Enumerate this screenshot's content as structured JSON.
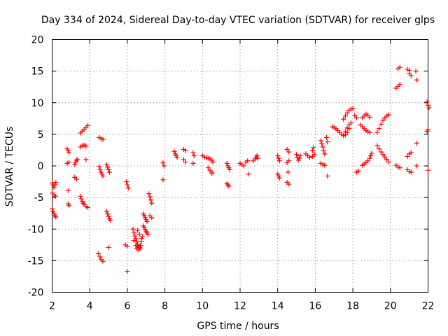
{
  "chart_data": {
    "type": "scatter",
    "title": "Day 334 of 2024, Sidereal Day-to-day VTEC variation (SDTVAR) for receiver glps",
    "xlabel": "GPS time / hours",
    "ylabel": "SDTVAR / TECUs",
    "xlim": [
      2,
      22
    ],
    "ylim": [
      -20,
      20
    ],
    "xticks": [
      2,
      4,
      6,
      8,
      10,
      12,
      14,
      16,
      18,
      20,
      22
    ],
    "yticks": [
      -20,
      -15,
      -10,
      -5,
      0,
      5,
      10,
      15,
      20
    ],
    "grid": true,
    "marker": "+",
    "color": "#ff0000",
    "segments": [
      [
        [
          2.0,
          -2.7
        ],
        [
          2.05,
          -3.0
        ],
        [
          2.1,
          -3.4
        ],
        [
          2.15,
          -3.0
        ],
        [
          2.2,
          -2.6
        ]
      ],
      [
        [
          2.0,
          -4.3
        ],
        [
          2.1,
          -4.6
        ],
        [
          2.18,
          -4.8
        ]
      ],
      [
        [
          2.0,
          -6.8
        ],
        [
          2.05,
          -7.2
        ],
        [
          2.1,
          -7.6
        ],
        [
          2.15,
          -7.9
        ],
        [
          2.2,
          -8.1
        ]
      ],
      [
        [
          2.8,
          2.7
        ],
        [
          2.85,
          2.4
        ],
        [
          2.9,
          2.1
        ]
      ],
      [
        [
          2.8,
          0.4
        ],
        [
          2.9,
          0.6
        ]
      ],
      [
        [
          2.85,
          -3.9
        ]
      ],
      [
        [
          2.85,
          -6.0
        ],
        [
          2.9,
          -6.3
        ]
      ],
      [
        [
          3.2,
          -1.8
        ],
        [
          3.3,
          -2.1
        ]
      ],
      [
        [
          3.2,
          0.2
        ],
        [
          3.25,
          0.6
        ],
        [
          3.3,
          0.9
        ],
        [
          3.35,
          1.0
        ]
      ],
      [
        [
          3.5,
          5.2
        ],
        [
          3.6,
          5.5
        ],
        [
          3.7,
          5.8
        ],
        [
          3.8,
          6.1
        ],
        [
          3.9,
          6.4
        ]
      ],
      [
        [
          3.5,
          3.0
        ],
        [
          3.6,
          3.2
        ],
        [
          3.7,
          3.3
        ],
        [
          3.8,
          3.1
        ]
      ],
      [
        [
          3.5,
          -4.8
        ],
        [
          3.55,
          -5.2
        ],
        [
          3.6,
          -5.6
        ],
        [
          3.65,
          -5.9
        ],
        [
          3.7,
          -6.1
        ],
        [
          3.8,
          -6.4
        ],
        [
          3.9,
          -6.6
        ]
      ],
      [
        [
          3.8,
          1.0
        ]
      ],
      [
        [
          4.5,
          4.5
        ],
        [
          4.6,
          4.3
        ],
        [
          4.7,
          4.2
        ]
      ],
      [
        [
          4.5,
          -0.1
        ],
        [
          4.55,
          -0.6
        ],
        [
          4.6,
          -1.0
        ],
        [
          4.65,
          -1.3
        ],
        [
          4.7,
          -1.6
        ]
      ],
      [
        [
          4.45,
          -13.9
        ],
        [
          4.55,
          -14.4
        ],
        [
          4.6,
          -14.8
        ],
        [
          4.7,
          -15.1
        ]
      ],
      [
        [
          4.9,
          0.2
        ],
        [
          4.95,
          -0.2
        ],
        [
          5.0,
          -0.6
        ],
        [
          5.05,
          -1.0
        ]
      ],
      [
        [
          4.9,
          -7.2
        ],
        [
          4.95,
          -7.6
        ],
        [
          5.0,
          -8.0
        ],
        [
          5.05,
          -8.4
        ],
        [
          5.1,
          -8.6
        ]
      ],
      [
        [
          5.0,
          -12.9
        ]
      ],
      [
        [
          5.95,
          -2.5
        ],
        [
          6.0,
          -3.0
        ],
        [
          6.05,
          -3.5
        ]
      ],
      [
        [
          5.9,
          -12.5
        ],
        [
          6.0,
          -12.7
        ]
      ],
      [
        [
          6.0,
          -16.7
        ]
      ],
      [
        [
          6.3,
          -10.0
        ],
        [
          6.35,
          -10.6
        ],
        [
          6.4,
          -11.1
        ],
        [
          6.45,
          -11.5
        ],
        [
          6.5,
          -12.0
        ],
        [
          6.55,
          -12.4
        ],
        [
          6.6,
          -12.8
        ],
        [
          6.65,
          -12.9
        ],
        [
          6.7,
          -12.6
        ],
        [
          6.75,
          -12.0
        ],
        [
          6.8,
          -11.2
        ]
      ],
      [
        [
          6.35,
          -11.8
        ],
        [
          6.45,
          -12.6
        ],
        [
          6.5,
          -13.1
        ],
        [
          6.6,
          -13.3
        ],
        [
          6.7,
          -13.0
        ]
      ],
      [
        [
          6.55,
          -10.2
        ],
        [
          6.65,
          -10.8
        ],
        [
          6.75,
          -11.5
        ]
      ],
      [
        [
          6.85,
          -7.6
        ],
        [
          6.9,
          -7.9
        ],
        [
          6.95,
          -8.2
        ],
        [
          7.0,
          -8.5
        ],
        [
          7.05,
          -8.8
        ]
      ],
      [
        [
          6.85,
          -9.5
        ],
        [
          6.9,
          -9.8
        ],
        [
          6.95,
          -10.1
        ],
        [
          7.0,
          -10.4
        ],
        [
          7.05,
          -10.6
        ],
        [
          7.1,
          -10.9
        ]
      ],
      [
        [
          7.15,
          -4.4
        ],
        [
          7.2,
          -4.9
        ],
        [
          7.25,
          -5.4
        ],
        [
          7.3,
          -5.9
        ]
      ],
      [
        [
          7.2,
          -7.9
        ],
        [
          7.3,
          -8.2
        ]
      ],
      [
        [
          7.9,
          0.5
        ],
        [
          7.95,
          0.0
        ]
      ],
      [
        [
          7.9,
          -2.2
        ]
      ],
      [
        [
          8.5,
          2.3
        ],
        [
          8.55,
          1.9
        ],
        [
          8.6,
          1.6
        ],
        [
          8.65,
          1.3
        ]
      ],
      [
        [
          9.0,
          2.6
        ],
        [
          9.1,
          2.4
        ]
      ],
      [
        [
          9.0,
          1.0
        ],
        [
          9.1,
          0.6
        ]
      ],
      [
        [
          9.5,
          2.1
        ],
        [
          9.55,
          1.6
        ]
      ],
      [
        [
          9.5,
          0.4
        ]
      ],
      [
        [
          10.0,
          1.6
        ],
        [
          10.1,
          1.4
        ],
        [
          10.2,
          1.3
        ],
        [
          10.3,
          1.2
        ],
        [
          10.4,
          1.1
        ],
        [
          10.5,
          0.9
        ],
        [
          10.55,
          0.6
        ]
      ],
      [
        [
          10.3,
          -0.3
        ],
        [
          10.4,
          -0.7
        ],
        [
          10.5,
          -1.0
        ]
      ],
      [
        [
          10.5,
          -1.2
        ]
      ],
      [
        [
          11.3,
          0.4
        ],
        [
          11.35,
          0.0
        ],
        [
          11.4,
          -0.3
        ],
        [
          11.45,
          -0.6
        ]
      ],
      [
        [
          11.3,
          -2.8
        ],
        [
          11.35,
          -3.0
        ],
        [
          11.4,
          -3.2
        ]
      ],
      [
        [
          12.0,
          0.4
        ],
        [
          12.1,
          0.2
        ],
        [
          12.2,
          0.0
        ]
      ],
      [
        [
          12.3,
          0.6
        ],
        [
          12.4,
          0.8
        ]
      ],
      [
        [
          12.45,
          -1.3
        ]
      ],
      [
        [
          12.7,
          0.8
        ],
        [
          12.8,
          1.1
        ],
        [
          12.85,
          1.4
        ],
        [
          12.9,
          1.6
        ],
        [
          12.95,
          1.2
        ]
      ],
      [
        [
          14.0,
          1.6
        ],
        [
          14.05,
          1.2
        ],
        [
          14.1,
          0.8
        ]
      ],
      [
        [
          14.0,
          -1.3
        ],
        [
          14.05,
          -1.6
        ],
        [
          14.1,
          -1.9
        ]
      ],
      [
        [
          14.5,
          2.6
        ],
        [
          14.6,
          2.2
        ]
      ],
      [
        [
          14.5,
          0.5
        ],
        [
          14.6,
          0.8
        ]
      ],
      [
        [
          14.55,
          -1.0
        ]
      ],
      [
        [
          14.5,
          -2.6
        ],
        [
          14.6,
          -2.9
        ]
      ],
      [
        [
          15.0,
          1.8
        ],
        [
          15.05,
          1.3
        ],
        [
          15.1,
          0.9
        ],
        [
          15.15,
          1.2
        ],
        [
          15.2,
          1.6
        ]
      ],
      [
        [
          15.5,
          1.9
        ],
        [
          15.6,
          1.6
        ],
        [
          15.7,
          1.3
        ]
      ],
      [
        [
          15.85,
          2.4
        ],
        [
          15.9,
          2.9
        ]
      ],
      [
        [
          15.85,
          1.5
        ],
        [
          15.95,
          1.8
        ]
      ],
      [
        [
          16.3,
          4.0
        ],
        [
          16.35,
          3.5
        ],
        [
          16.4,
          3.0
        ],
        [
          16.45,
          2.4
        ],
        [
          16.5,
          1.9
        ]
      ],
      [
        [
          16.3,
          0.4
        ],
        [
          16.4,
          0.2
        ],
        [
          16.5,
          0.1
        ]
      ],
      [
        [
          16.6,
          4.5
        ],
        [
          16.65,
          3.8
        ]
      ],
      [
        [
          16.65,
          -1.6
        ]
      ],
      [
        [
          16.9,
          6.2
        ],
        [
          17.0,
          6.1
        ],
        [
          17.1,
          5.9
        ],
        [
          17.2,
          5.6
        ],
        [
          17.3,
          5.3
        ],
        [
          17.4,
          5.0
        ],
        [
          17.5,
          4.8
        ],
        [
          17.6,
          4.9
        ],
        [
          17.7,
          5.3
        ],
        [
          17.8,
          5.9
        ]
      ],
      [
        [
          17.5,
          7.4
        ],
        [
          17.6,
          7.9
        ],
        [
          17.7,
          8.4
        ],
        [
          17.8,
          8.8
        ],
        [
          17.9,
          9.0
        ],
        [
          18.0,
          9.1
        ]
      ],
      [
        [
          17.6,
          5.4
        ],
        [
          17.7,
          6.0
        ],
        [
          17.8,
          6.5
        ],
        [
          17.9,
          6.8
        ]
      ],
      [
        [
          18.1,
          8.0
        ],
        [
          18.2,
          7.6
        ]
      ],
      [
        [
          18.2,
          -1.0
        ],
        [
          18.3,
          -0.8
        ]
      ],
      [
        [
          18.4,
          6.5
        ],
        [
          18.5,
          6.2
        ],
        [
          18.6,
          5.9
        ],
        [
          18.7,
          5.6
        ],
        [
          18.8,
          5.4
        ],
        [
          18.9,
          5.3
        ]
      ],
      [
        [
          18.5,
          7.6
        ],
        [
          18.6,
          7.9
        ],
        [
          18.7,
          8.2
        ],
        [
          18.8,
          8.0
        ],
        [
          18.9,
          7.7
        ]
      ],
      [
        [
          18.5,
          0.1
        ],
        [
          18.6,
          0.3
        ],
        [
          18.7,
          0.5
        ],
        [
          18.8,
          0.8
        ],
        [
          18.9,
          1.2
        ],
        [
          18.95,
          1.6
        ],
        [
          19.0,
          2.0
        ]
      ],
      [
        [
          19.3,
          5.3
        ],
        [
          19.4,
          5.9
        ],
        [
          19.5,
          6.6
        ],
        [
          19.6,
          7.2
        ],
        [
          19.7,
          7.6
        ],
        [
          19.8,
          7.9
        ],
        [
          19.9,
          8.1
        ]
      ],
      [
        [
          19.3,
          3.2
        ],
        [
          19.4,
          2.7
        ],
        [
          19.5,
          2.2
        ],
        [
          19.6,
          1.8
        ],
        [
          19.7,
          1.4
        ],
        [
          19.8,
          1.0
        ],
        [
          19.9,
          0.6
        ]
      ],
      [
        [
          20.3,
          12.3
        ],
        [
          20.4,
          12.6
        ],
        [
          20.5,
          12.9
        ]
      ],
      [
        [
          20.4,
          15.4
        ],
        [
          20.5,
          15.6
        ]
      ],
      [
        [
          20.3,
          0.1
        ],
        [
          20.4,
          -0.2
        ],
        [
          20.5,
          -0.3
        ]
      ],
      [
        [
          20.9,
          15.3
        ],
        [
          21.0,
          15.1
        ]
      ],
      [
        [
          21.0,
          14.6
        ],
        [
          21.1,
          14.3
        ]
      ],
      [
        [
          20.9,
          1.5
        ],
        [
          21.0,
          1.9
        ],
        [
          21.1,
          2.1
        ]
      ],
      [
        [
          20.9,
          -0.6
        ],
        [
          21.0,
          -0.9
        ],
        [
          21.1,
          -1.0
        ]
      ],
      [
        [
          21.35,
          15.0
        ],
        [
          21.4,
          13.6
        ]
      ],
      [
        [
          21.4,
          3.6
        ]
      ],
      [
        [
          21.4,
          0.0
        ]
      ],
      [
        [
          21.95,
          10.1
        ],
        [
          22.0,
          9.6
        ],
        [
          22.05,
          9.2
        ]
      ],
      [
        [
          21.95,
          5.5
        ],
        [
          22.0,
          5.7
        ]
      ],
      [
        [
          22.0,
          -0.7
        ]
      ]
    ]
  }
}
